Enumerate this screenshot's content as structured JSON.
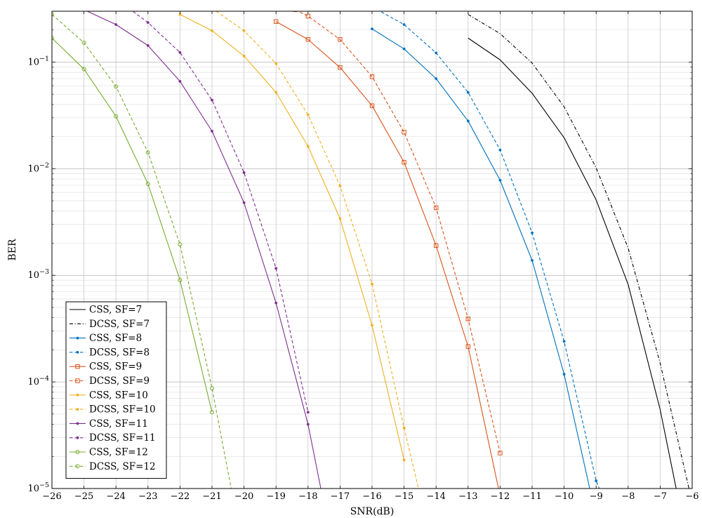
{
  "chart_data": {
    "type": "line",
    "title": "",
    "xlabel": "SNR(dB)",
    "ylabel": "BER",
    "xlim": [
      -26,
      -6
    ],
    "ylim": [
      1e-05,
      0.3
    ],
    "yscale": "log",
    "grid": true,
    "legend_position": "bottom-left",
    "x_ticks": [
      "−26",
      "−25",
      "−24",
      "−23",
      "−22",
      "−21",
      "−20",
      "−19",
      "−18",
      "−17",
      "−16",
      "−15",
      "−14",
      "−13",
      "−12",
      "−11",
      "−10",
      "−9",
      "−8",
      "−7",
      "−6"
    ],
    "y_ticks": [
      {
        "value": 0.1,
        "base": "10",
        "exp": "−1"
      },
      {
        "value": 0.01,
        "base": "10",
        "exp": "−2"
      },
      {
        "value": 0.001,
        "base": "10",
        "exp": "−3"
      },
      {
        "value": 0.0001,
        "base": "10",
        "exp": "−4"
      },
      {
        "value": 1e-05,
        "base": "10",
        "exp": "−5"
      }
    ],
    "series": [
      {
        "name": "CSS, SF=7",
        "color": "#000000",
        "dash": "solid",
        "marker": "none",
        "x": [
          -13,
          -12,
          -11,
          -10,
          -9,
          -8,
          -7,
          -6.5
        ],
        "y": [
          0.168,
          0.105,
          0.051,
          0.0195,
          0.0051,
          0.00082,
          5.5e-05,
          1e-05
        ]
      },
      {
        "name": "DCSS, SF=7",
        "color": "#000000",
        "dash": "dashdot",
        "marker": "none",
        "x": [
          -13,
          -12,
          -11,
          -10,
          -9,
          -8,
          -7,
          -6.1
        ],
        "y": [
          0.28,
          0.185,
          0.098,
          0.038,
          0.0102,
          0.0018,
          0.00015,
          1e-05
        ]
      },
      {
        "name": "CSS, SF=8",
        "color": "#0072BD",
        "dash": "solid",
        "marker": "dot",
        "x": [
          -16,
          -15,
          -14,
          -13,
          -12,
          -11,
          -10,
          -9.2
        ],
        "y": [
          0.205,
          0.133,
          0.07,
          0.028,
          0.0078,
          0.00138,
          0.000118,
          1e-05
        ]
      },
      {
        "name": "DCSS, SF=8",
        "color": "#0072BD",
        "dash": "dashed",
        "marker": "dot",
        "x": [
          -16,
          -15,
          -14,
          -13,
          -12,
          -11,
          -10,
          -9,
          -8.9
        ],
        "y": [
          0.33,
          0.225,
          0.122,
          0.052,
          0.015,
          0.0025,
          0.00024,
          1.18e-05,
          1e-05
        ]
      },
      {
        "name": "CSS, SF=9",
        "color": "#D95319",
        "dash": "solid",
        "marker": "square",
        "x": [
          -19,
          -18,
          -17,
          -16,
          -15,
          -14,
          -13,
          -12.05
        ],
        "y": [
          0.24,
          0.163,
          0.089,
          0.039,
          0.0115,
          0.0019,
          0.000215,
          1e-05
        ]
      },
      {
        "name": "DCSS, SF=9",
        "color": "#D95319",
        "dash": "dashed",
        "marker": "square",
        "x": [
          -18.4,
          -18,
          -17,
          -16,
          -15,
          -14,
          -13,
          -12
        ],
        "y": [
          0.31,
          0.27,
          0.163,
          0.073,
          0.022,
          0.0043,
          0.00039,
          2.15e-05
        ]
      },
      {
        "name": "CSS, SF=10",
        "color": "#EDB120",
        "dash": "solid",
        "marker": "dot",
        "x": [
          -22,
          -21,
          -20,
          -19,
          -18,
          -17,
          -16,
          -15
        ],
        "y": [
          0.28,
          0.197,
          0.114,
          0.052,
          0.0162,
          0.0034,
          0.00034,
          1.85e-05
        ]
      },
      {
        "name": "DCSS, SF=10",
        "color": "#EDB120",
        "dash": "dashed",
        "marker": "dot",
        "x": [
          -21,
          -20,
          -19,
          -18,
          -17,
          -16,
          -15,
          -14.55
        ],
        "y": [
          0.32,
          0.197,
          0.097,
          0.032,
          0.0069,
          0.00083,
          3.7e-05,
          1e-05
        ]
      },
      {
        "name": "CSS, SF=11",
        "color": "#7E2F8E",
        "dash": "solid",
        "marker": "dot",
        "x": [
          -25,
          -24,
          -23,
          -22,
          -21,
          -20,
          -19,
          -18,
          -17.6
        ],
        "y": [
          0.31,
          0.225,
          0.143,
          0.066,
          0.0225,
          0.0048,
          0.00055,
          4e-05,
          1e-05
        ]
      },
      {
        "name": "DCSS, SF=11",
        "color": "#7E2F8E",
        "dash": "dashed",
        "marker": "dot",
        "x": [
          -23.6,
          -23,
          -22,
          -21,
          -20,
          -19,
          -18
        ],
        "y": [
          0.32,
          0.235,
          0.123,
          0.044,
          0.0092,
          0.00116,
          5.2e-05
        ]
      },
      {
        "name": "CSS, SF=12",
        "color": "#77AC30",
        "dash": "solid",
        "marker": "circle",
        "x": [
          -26,
          -25,
          -24,
          -23,
          -22,
          -21
        ],
        "y": [
          0.168,
          0.086,
          0.031,
          0.0072,
          0.0009,
          5.2e-05
        ]
      },
      {
        "name": "DCSS, SF=12",
        "color": "#77AC30",
        "dash": "dashed",
        "marker": "circle",
        "x": [
          -26,
          -25,
          -24,
          -23,
          -22,
          -21,
          -20.4
        ],
        "y": [
          0.28,
          0.152,
          0.059,
          0.0142,
          0.00195,
          8.7e-05,
          1e-05
        ]
      }
    ]
  }
}
